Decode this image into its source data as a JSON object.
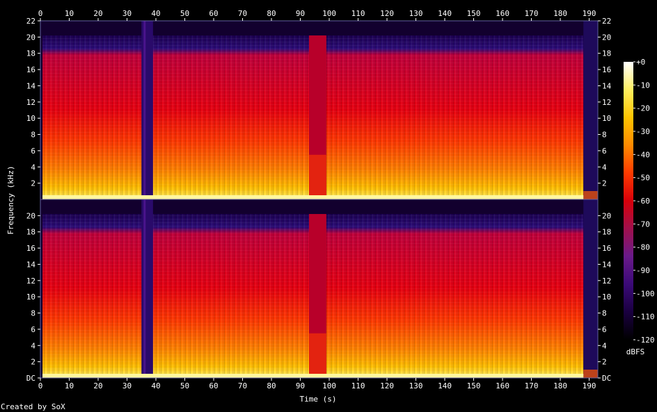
{
  "chart_data": {
    "type": "heatmap",
    "title": "",
    "xlabel": "Time (s)",
    "ylabel": "Frequency (kHz)",
    "x_ticks": [
      0,
      10,
      20,
      30,
      40,
      50,
      60,
      70,
      80,
      90,
      100,
      110,
      120,
      130,
      140,
      150,
      160,
      170,
      180,
      190
    ],
    "xlim": [
      0,
      193
    ],
    "ylim": [
      0,
      22
    ],
    "channels": [
      {
        "y_tick_labels": [
          "2",
          "4",
          "6",
          "8",
          "10",
          "12",
          "14",
          "16",
          "18",
          "20",
          "22"
        ],
        "y_tick_values": [
          2,
          4,
          6,
          8,
          10,
          12,
          14,
          16,
          18,
          20,
          22
        ]
      },
      {
        "y_tick_labels": [
          "DC",
          "2",
          "4",
          "6",
          "8",
          "10",
          "12",
          "14",
          "16",
          "18",
          "20"
        ],
        "y_tick_values": [
          0,
          2,
          4,
          6,
          8,
          10,
          12,
          14,
          16,
          18,
          20
        ]
      }
    ],
    "colorbar": {
      "label": "dBFS",
      "range": [
        -120,
        0
      ],
      "tick_labels": [
        "+0",
        "-10",
        "-20",
        "-30",
        "-40",
        "-50",
        "-60",
        "-70",
        "-80",
        "-90",
        "-100",
        "-110",
        "-120"
      ],
      "tick_values": [
        0,
        -10,
        -20,
        -30,
        -40,
        -50,
        -60,
        -70,
        -80,
        -90,
        -100,
        -110,
        -120
      ],
      "colors": [
        "#000000",
        "#1a0040",
        "#3b0a78",
        "#6a1a8a",
        "#a0104c",
        "#d8000a",
        "#ff3a00",
        "#ff8a00",
        "#ffc400",
        "#ffef60",
        "#ffffff"
      ]
    },
    "quiet_segments_s": [
      [
        35,
        39
      ],
      [
        93,
        99
      ],
      [
        188,
        193
      ]
    ],
    "lowpass_cutoff_khz": 20.2
  },
  "footer": {
    "credit": "Created by SoX"
  }
}
